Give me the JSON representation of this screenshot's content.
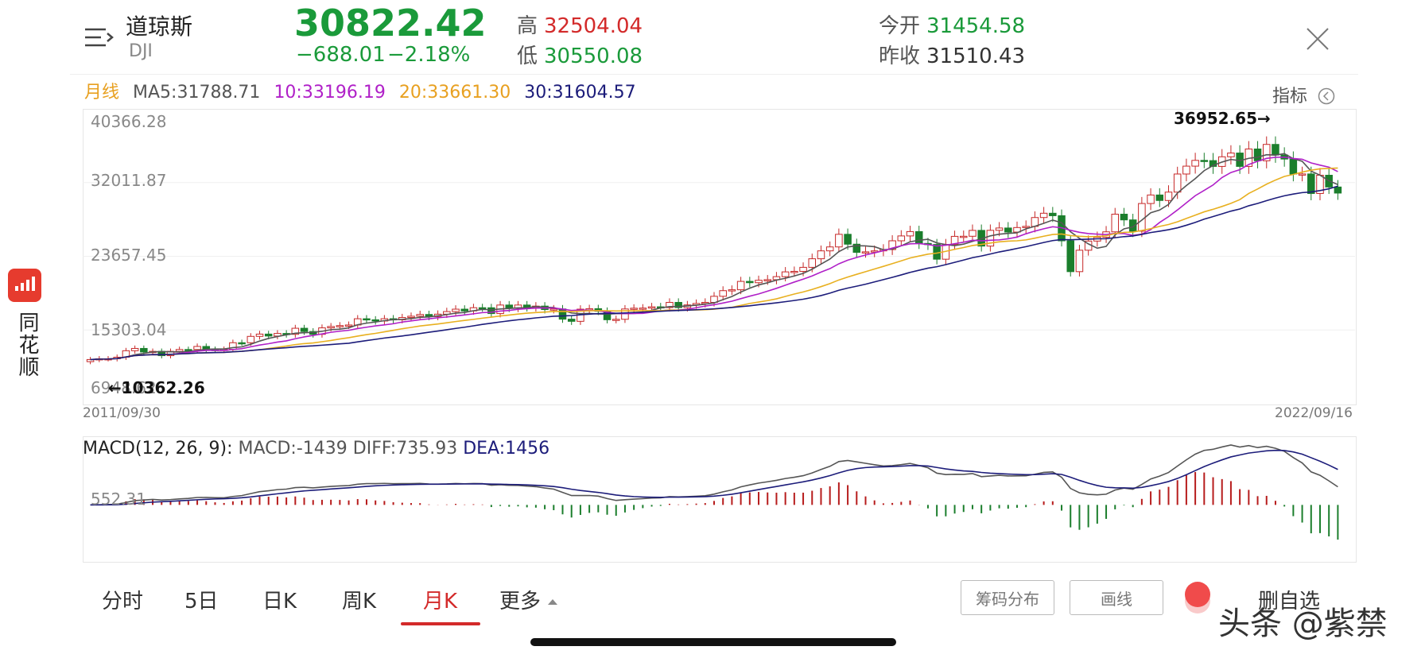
{
  "header": {
    "name": "道琼斯",
    "code": "DJI",
    "price": "30822.42",
    "change": "−688.01",
    "change_pct": "−2.18%",
    "high_label": "高",
    "high": "32504.04",
    "low_label": "低",
    "low": "30550.08",
    "open_label": "今开",
    "open": "31454.58",
    "prev_close_label": "昨收",
    "prev_close": "31510.43"
  },
  "ma": {
    "period": "月线",
    "ma5": "MA5:31788.71",
    "ma10": "10:33196.19",
    "ma20": "20:33661.30",
    "ma30": "30:31604.57"
  },
  "indicator_label": "指标",
  "chart_data": {
    "type": "candlestick",
    "y_ticks": [
      "40366.28",
      "32011.87",
      "23657.45",
      "15303.04",
      "6948.62"
    ],
    "ylim": [
      6948.62,
      40366.28
    ],
    "x_start": "2011/09/30",
    "x_end": "2022/09/16",
    "max_annotation": "36952.65→",
    "min_annotation": "←10362.26",
    "ma_colors": {
      "ma5": "#555555",
      "ma10": "#b020c8",
      "ma20": "#e8b020",
      "ma30": "#1c1c7a"
    },
    "closes": [
      11955,
      12046,
      12046,
      12218,
      12952,
      13213,
      12812,
      12881,
      12393,
      12880,
      13091,
      13090,
      13437,
      13096,
      13025,
      13104,
      13861,
      13860,
      14579,
      14840,
      14618,
      14911,
      14810,
      15500,
      15130,
      14810,
      15544,
      15700,
      15801,
      15870,
      16577,
      16458,
      16321,
      16581,
      16458,
      16717,
      16864,
      17060,
      16827,
      17098,
      17390,
      17664,
      17465,
      17829,
      17823,
      17165,
      18132,
      17776,
      18133,
      17840,
      18011,
      17620,
      17690,
      16528,
      16285,
      17664,
      17720,
      17425,
      16466,
      16517,
      17685,
      17774,
      17788,
      17930,
      17840,
      18432,
      17840,
      18143,
      18308,
      18432,
      19123,
      19762,
      19864,
      20812,
      20663,
      20940,
      21009,
      21349,
      21891,
      21948,
      22405,
      23377,
      24272,
      24719,
      26149,
      25029,
      24103,
      24163,
      24271,
      24415,
      25415,
      25964,
      26458,
      25116,
      24999,
      23327,
      25000,
      25916,
      25928,
      26593,
      24815,
      26600,
      26864,
      26403,
      26917,
      27046,
      28051,
      28538,
      28256,
      25409,
      21917,
      24346,
      25383,
      25813,
      26428,
      28430,
      27782,
      26502,
      29639,
      30606,
      29983,
      30932,
      32982,
      33875,
      34529,
      34503,
      33844,
      34935,
      35361,
      33844,
      35820,
      34483,
      36338,
      35132,
      34678,
      32977,
      32990,
      30775,
      32845,
      31510,
      30822
    ],
    "macd_label": "MACD(12, 26, 9):",
    "macd": "MACD:-1439",
    "diff": "DIFF:735.93",
    "dea": "DEA:1456",
    "macd_tick": "552.31"
  },
  "tabs": [
    "分时",
    "5日",
    "日K",
    "周K",
    "月K",
    "更多"
  ],
  "active_tab": "月K",
  "buttons": {
    "chips": "筹码分布",
    "draw": "画线",
    "del_fav": "删自选"
  },
  "sidebar": {
    "app": "同花顺"
  },
  "watermark": "头条 @紫禁"
}
